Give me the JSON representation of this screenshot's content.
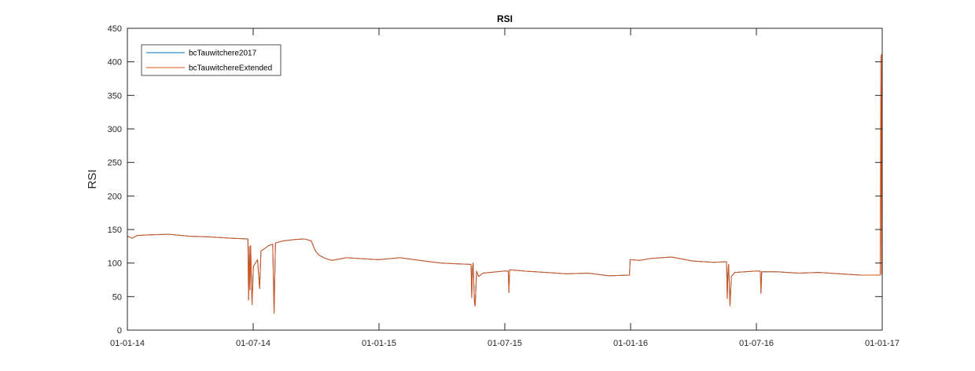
{
  "chart_data": {
    "type": "line",
    "title": "RSI",
    "xlabel": "",
    "ylabel": "RSI",
    "xlim": [
      "2014-01-01",
      "2017-01-01"
    ],
    "ylim": [
      0,
      450
    ],
    "x_ticks": [
      "01-01-14",
      "01-07-14",
      "01-01-15",
      "01-07-15",
      "01-01-16",
      "01-07-16",
      "01-01-17"
    ],
    "y_ticks": [
      0,
      50,
      100,
      150,
      200,
      250,
      300,
      350,
      400,
      450
    ],
    "grid": false,
    "legend": {
      "placement": "top-left",
      "entries": [
        "bcTauwitchere2017",
        "bcTauwitchereExtended"
      ]
    },
    "colors": {
      "bcTauwitchere2017": "#0072BD",
      "bcTauwitchereExtended": "#D95319"
    },
    "series": [
      {
        "name": "bcTauwitchere2017",
        "color": "#0072BD",
        "points": [
          [
            "2014-01-01",
            140
          ],
          [
            "2014-01-08",
            137
          ],
          [
            "2014-01-15",
            141
          ],
          [
            "2014-02-01",
            142
          ],
          [
            "2014-03-01",
            143
          ],
          [
            "2014-04-01",
            140
          ],
          [
            "2014-05-01",
            139
          ],
          [
            "2014-06-01",
            137
          ],
          [
            "2014-06-25",
            136
          ],
          [
            "2014-06-26",
            45
          ],
          [
            "2014-06-27",
            125
          ],
          [
            "2014-06-28",
            60
          ],
          [
            "2014-06-29",
            126
          ],
          [
            "2014-07-01",
            38
          ],
          [
            "2014-07-03",
            95
          ],
          [
            "2014-07-06",
            100
          ],
          [
            "2014-07-09",
            105
          ],
          [
            "2014-07-12",
            62
          ],
          [
            "2014-07-14",
            118
          ],
          [
            "2014-07-20",
            122
          ],
          [
            "2014-07-25",
            126
          ],
          [
            "2014-07-31",
            128
          ],
          [
            "2014-08-02",
            25
          ],
          [
            "2014-08-04",
            130
          ],
          [
            "2014-08-15",
            133
          ],
          [
            "2014-09-01",
            135
          ],
          [
            "2014-09-15",
            136
          ],
          [
            "2014-09-25",
            133
          ],
          [
            "2014-10-01",
            118
          ],
          [
            "2014-10-06",
            112
          ],
          [
            "2014-10-15",
            107
          ],
          [
            "2014-10-25",
            104
          ],
          [
            "2014-11-15",
            108
          ],
          [
            "2014-12-15",
            106
          ],
          [
            "2015-01-01",
            105
          ],
          [
            "2015-02-01",
            108
          ],
          [
            "2015-03-01",
            104
          ],
          [
            "2015-04-01",
            100
          ],
          [
            "2015-04-20",
            99
          ],
          [
            "2015-05-15",
            98
          ],
          [
            "2015-05-16",
            48
          ],
          [
            "2015-05-17",
            92
          ],
          [
            "2015-05-18",
            100
          ],
          [
            "2015-05-20",
            40
          ],
          [
            "2015-05-21",
            36
          ],
          [
            "2015-05-23",
            88
          ],
          [
            "2015-05-26",
            80
          ],
          [
            "2015-06-01",
            85
          ],
          [
            "2015-07-01",
            88
          ],
          [
            "2015-07-08",
            88
          ],
          [
            "2015-07-09",
            56
          ],
          [
            "2015-07-10",
            90
          ],
          [
            "2015-08-01",
            88
          ],
          [
            "2015-09-01",
            86
          ],
          [
            "2015-10-01",
            84
          ],
          [
            "2015-11-01",
            85
          ],
          [
            "2015-12-01",
            81
          ],
          [
            "2015-12-31",
            82
          ],
          [
            "2016-01-01",
            105
          ],
          [
            "2016-01-15",
            104
          ],
          [
            "2016-02-01",
            107
          ],
          [
            "2016-03-01",
            109
          ],
          [
            "2016-04-01",
            103
          ],
          [
            "2016-05-01",
            101
          ],
          [
            "2016-05-20",
            102
          ],
          [
            "2016-05-21",
            47
          ],
          [
            "2016-05-22",
            85
          ],
          [
            "2016-05-23",
            98
          ],
          [
            "2016-05-25",
            36
          ],
          [
            "2016-05-27",
            80
          ],
          [
            "2016-06-01",
            86
          ],
          [
            "2016-07-01",
            88
          ],
          [
            "2016-07-08",
            88
          ],
          [
            "2016-07-09",
            55
          ],
          [
            "2016-07-10",
            87
          ],
          [
            "2016-08-01",
            87
          ],
          [
            "2016-09-01",
            85
          ],
          [
            "2016-10-01",
            86
          ],
          [
            "2016-11-01",
            84
          ],
          [
            "2016-12-01",
            82
          ],
          [
            "2016-12-28",
            82
          ]
        ]
      },
      {
        "name": "bcTauwitchereExtended",
        "color": "#D95319",
        "points": [
          [
            "2014-01-01",
            140
          ],
          [
            "2014-01-08",
            137
          ],
          [
            "2014-01-15",
            141
          ],
          [
            "2014-02-01",
            142
          ],
          [
            "2014-03-01",
            143
          ],
          [
            "2014-04-01",
            140
          ],
          [
            "2014-05-01",
            139
          ],
          [
            "2014-06-01",
            137
          ],
          [
            "2014-06-25",
            136
          ],
          [
            "2014-06-26",
            45
          ],
          [
            "2014-06-27",
            125
          ],
          [
            "2014-06-28",
            60
          ],
          [
            "2014-06-29",
            126
          ],
          [
            "2014-07-01",
            38
          ],
          [
            "2014-07-03",
            95
          ],
          [
            "2014-07-06",
            100
          ],
          [
            "2014-07-09",
            105
          ],
          [
            "2014-07-12",
            62
          ],
          [
            "2014-07-14",
            118
          ],
          [
            "2014-07-20",
            122
          ],
          [
            "2014-07-25",
            126
          ],
          [
            "2014-07-31",
            128
          ],
          [
            "2014-08-02",
            25
          ],
          [
            "2014-08-04",
            130
          ],
          [
            "2014-08-15",
            133
          ],
          [
            "2014-09-01",
            135
          ],
          [
            "2014-09-15",
            136
          ],
          [
            "2014-09-25",
            133
          ],
          [
            "2014-10-01",
            118
          ],
          [
            "2014-10-06",
            112
          ],
          [
            "2014-10-15",
            107
          ],
          [
            "2014-10-25",
            104
          ],
          [
            "2014-11-15",
            108
          ],
          [
            "2014-12-15",
            106
          ],
          [
            "2015-01-01",
            105
          ],
          [
            "2015-02-01",
            108
          ],
          [
            "2015-03-01",
            104
          ],
          [
            "2015-04-01",
            100
          ],
          [
            "2015-04-20",
            99
          ],
          [
            "2015-05-15",
            98
          ],
          [
            "2015-05-16",
            48
          ],
          [
            "2015-05-17",
            92
          ],
          [
            "2015-05-18",
            100
          ],
          [
            "2015-05-20",
            40
          ],
          [
            "2015-05-21",
            36
          ],
          [
            "2015-05-23",
            88
          ],
          [
            "2015-05-26",
            80
          ],
          [
            "2015-06-01",
            85
          ],
          [
            "2015-07-01",
            88
          ],
          [
            "2015-07-08",
            88
          ],
          [
            "2015-07-09",
            56
          ],
          [
            "2015-07-10",
            90
          ],
          [
            "2015-08-01",
            88
          ],
          [
            "2015-09-01",
            86
          ],
          [
            "2015-10-01",
            84
          ],
          [
            "2015-11-01",
            85
          ],
          [
            "2015-12-01",
            81
          ],
          [
            "2015-12-31",
            82
          ],
          [
            "2016-01-01",
            105
          ],
          [
            "2016-01-15",
            104
          ],
          [
            "2016-02-01",
            107
          ],
          [
            "2016-03-01",
            109
          ],
          [
            "2016-04-01",
            103
          ],
          [
            "2016-05-01",
            101
          ],
          [
            "2016-05-20",
            102
          ],
          [
            "2016-05-21",
            47
          ],
          [
            "2016-05-22",
            85
          ],
          [
            "2016-05-23",
            98
          ],
          [
            "2016-05-25",
            36
          ],
          [
            "2016-05-27",
            80
          ],
          [
            "2016-06-01",
            86
          ],
          [
            "2016-07-01",
            88
          ],
          [
            "2016-07-08",
            88
          ],
          [
            "2016-07-09",
            55
          ],
          [
            "2016-07-10",
            87
          ],
          [
            "2016-08-01",
            87
          ],
          [
            "2016-09-01",
            85
          ],
          [
            "2016-10-01",
            86
          ],
          [
            "2016-11-01",
            84
          ],
          [
            "2016-12-01",
            82
          ],
          [
            "2016-12-28",
            82
          ],
          [
            "2016-12-29",
            82
          ],
          [
            "2016-12-30",
            410
          ],
          [
            "2016-12-31",
            83
          ],
          [
            "2016-12-31T12:00",
            412
          ]
        ]
      }
    ]
  }
}
